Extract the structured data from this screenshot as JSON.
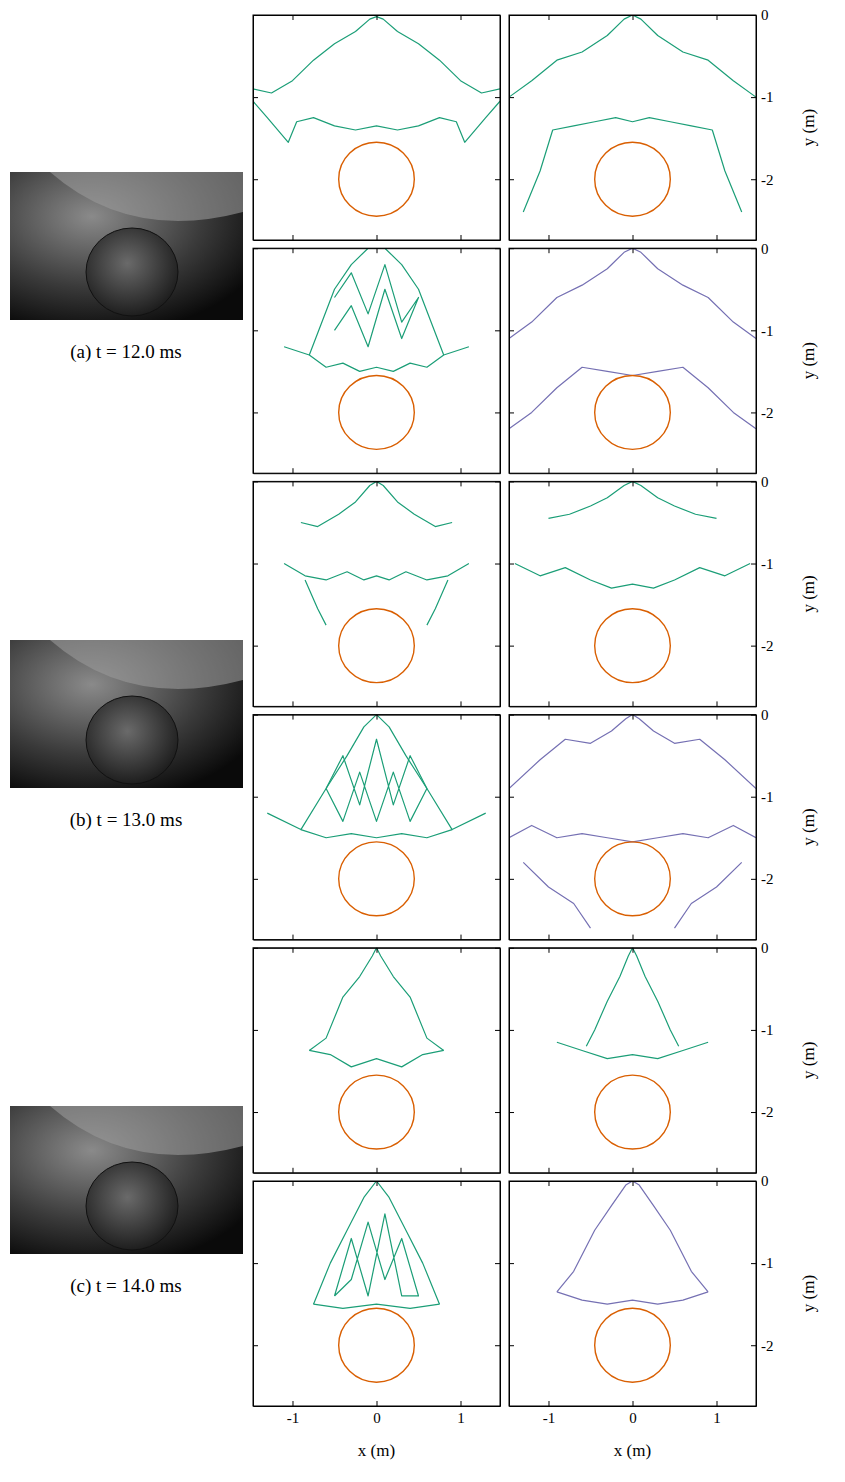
{
  "captions": [
    "(a) t = 12.0 ms",
    "(b) t = 13.0 ms",
    "(c) t = 14.0 ms"
  ],
  "chart_data": [
    {
      "type": "contour",
      "xlim": [
        -1.47,
        1.47
      ],
      "ylim": [
        -2.74,
        0
      ],
      "xticks": [
        -1,
        0,
        1
      ],
      "yticks": [
        0,
        -1,
        -2
      ],
      "tick_labels": false,
      "circle": {
        "cx": 0,
        "cy": -2,
        "r": 0.45,
        "color": "#d95f02"
      },
      "series": [
        {
          "color": "#1b9e77",
          "x": [
            -1.47,
            -1.25,
            -1.0,
            -0.75,
            -0.5,
            -0.25,
            -0.08,
            0,
            0.08,
            0.25,
            0.5,
            0.75,
            1.0,
            1.25,
            1.47
          ],
          "values": [
            -0.9,
            -0.95,
            -0.8,
            -0.55,
            -0.35,
            -0.2,
            -0.05,
            -0.02,
            -0.05,
            -0.2,
            -0.35,
            -0.55,
            -0.8,
            -0.95,
            -0.9
          ]
        },
        {
          "color": "#1b9e77",
          "x": [
            -1.47,
            -1.3,
            -1.05,
            -0.95,
            -0.75,
            -0.5,
            -0.25,
            0,
            0.25,
            0.5,
            0.75,
            0.95,
            1.05,
            1.3,
            1.47
          ],
          "values": [
            -1.05,
            -1.25,
            -1.55,
            -1.3,
            -1.25,
            -1.35,
            -1.4,
            -1.35,
            -1.4,
            -1.35,
            -1.25,
            -1.3,
            -1.55,
            -1.25,
            -1.05
          ]
        }
      ]
    },
    {
      "type": "contour",
      "xlim": [
        -1.47,
        1.47
      ],
      "ylim": [
        -2.74,
        0
      ],
      "xticks": [
        -1,
        0,
        1
      ],
      "yticks": [
        0,
        -1,
        -2
      ],
      "tick_labels": "y",
      "ylabel": "y (m)",
      "circle": {
        "cx": 0,
        "cy": -2,
        "r": 0.45,
        "color": "#d95f02"
      },
      "series": [
        {
          "color": "#1b9e77",
          "x": [
            -1.47,
            -1.2,
            -0.9,
            -0.6,
            -0.3,
            -0.1,
            0,
            0.1,
            0.3,
            0.6,
            0.9,
            1.2,
            1.47
          ],
          "values": [
            -1.0,
            -0.8,
            -0.55,
            -0.45,
            -0.25,
            -0.05,
            0,
            -0.05,
            -0.25,
            -0.45,
            -0.55,
            -0.8,
            -1.0
          ]
        },
        {
          "color": "#1b9e77",
          "x": [
            -1.3,
            -1.1,
            -0.95,
            -0.7,
            -0.45,
            -0.2,
            0,
            0.2,
            0.45,
            0.7,
            0.95,
            1.1,
            1.3
          ],
          "values": [
            -2.4,
            -1.9,
            -1.4,
            -1.35,
            -1.3,
            -1.25,
            -1.3,
            -1.25,
            -1.3,
            -1.35,
            -1.4,
            -1.9,
            -2.4
          ]
        }
      ]
    },
    {
      "type": "contour",
      "xlim": [
        -1.47,
        1.47
      ],
      "ylim": [
        -2.74,
        0
      ],
      "xticks": [
        -1,
        0,
        1
      ],
      "yticks": [
        0,
        -1,
        -2
      ],
      "tick_labels": false,
      "circle": {
        "cx": 0,
        "cy": -2,
        "r": 0.45,
        "color": "#d95f02"
      },
      "series": [
        {
          "color": "#1b9e77",
          "x": [
            -1.1,
            -0.8,
            -0.5,
            -0.3,
            -0.1,
            0,
            0.1,
            0.3,
            0.5,
            0.8,
            1.1
          ],
          "values": [
            -1.2,
            -1.3,
            -0.5,
            -0.2,
            0,
            0,
            0,
            -0.2,
            -0.5,
            -1.3,
            -1.2
          ]
        },
        {
          "color": "#1b9e77",
          "x": [
            -0.8,
            -0.6,
            -0.4,
            -0.2,
            0,
            0.2,
            0.4,
            0.6,
            0.8
          ],
          "values": [
            -1.3,
            -1.45,
            -1.4,
            -1.5,
            -1.45,
            -1.5,
            -1.4,
            -1.45,
            -1.3
          ]
        },
        {
          "color": "#1b9e77",
          "x": [
            -0.5,
            -0.3,
            -0.1,
            0.1,
            0.3,
            0.5,
            0.3,
            0.1,
            -0.1,
            -0.3,
            -0.5
          ],
          "values": [
            -0.6,
            -0.3,
            -0.8,
            -0.2,
            -0.9,
            -0.6,
            -1.1,
            -0.5,
            -1.2,
            -0.7,
            -1.0
          ]
        }
      ]
    },
    {
      "type": "contour",
      "xlim": [
        -1.47,
        1.47
      ],
      "ylim": [
        -2.74,
        0
      ],
      "xticks": [
        -1,
        0,
        1
      ],
      "yticks": [
        0,
        -1,
        -2
      ],
      "tick_labels": "y",
      "ylabel": "y (m)",
      "circle": {
        "cx": 0,
        "cy": -2,
        "r": 0.45,
        "color": "#d95f02"
      },
      "series": [
        {
          "color": "#7570b3",
          "x": [
            -1.47,
            -1.2,
            -0.9,
            -0.6,
            -0.3,
            -0.1,
            0,
            0.1,
            0.3,
            0.6,
            0.9,
            1.2,
            1.47
          ],
          "values": [
            -1.1,
            -0.9,
            -0.6,
            -0.45,
            -0.25,
            -0.05,
            0,
            -0.05,
            -0.25,
            -0.45,
            -0.6,
            -0.9,
            -1.1
          ]
        },
        {
          "color": "#7570b3",
          "x": [
            -1.47,
            -1.2,
            -0.9,
            -0.6,
            -0.3,
            0,
            0.3,
            0.6,
            0.9,
            1.2,
            1.47
          ],
          "values": [
            -2.2,
            -2.0,
            -1.7,
            -1.45,
            -1.5,
            -1.55,
            -1.5,
            -1.45,
            -1.7,
            -2.0,
            -2.2
          ]
        }
      ]
    },
    {
      "type": "contour",
      "xlim": [
        -1.47,
        1.47
      ],
      "ylim": [
        -2.74,
        0
      ],
      "xticks": [
        -1,
        0,
        1
      ],
      "yticks": [
        0,
        -1,
        -2
      ],
      "tick_labels": false,
      "circle": {
        "cx": 0,
        "cy": -2,
        "r": 0.45,
        "color": "#d95f02"
      },
      "series": [
        {
          "color": "#1b9e77",
          "x": [
            -0.9,
            -0.7,
            -0.45,
            -0.25,
            -0.08,
            0,
            0.08,
            0.25,
            0.45,
            0.7,
            0.9
          ],
          "values": [
            -0.5,
            -0.55,
            -0.4,
            -0.25,
            -0.05,
            0,
            -0.05,
            -0.25,
            -0.4,
            -0.55,
            -0.5
          ]
        },
        {
          "color": "#1b9e77",
          "x": [
            -1.1,
            -0.85,
            -0.6,
            -0.35,
            -0.15,
            0,
            0.15,
            0.35,
            0.6,
            0.85,
            1.1
          ],
          "values": [
            -1.0,
            -1.15,
            -1.2,
            -1.1,
            -1.2,
            -1.15,
            -1.2,
            -1.1,
            -1.2,
            -1.15,
            -1.0
          ]
        },
        {
          "color": "#1b9e77",
          "x": [
            -0.85,
            -0.7,
            -0.6
          ],
          "values": [
            -1.2,
            -1.55,
            -1.75
          ]
        },
        {
          "color": "#1b9e77",
          "x": [
            0.85,
            0.7,
            0.6
          ],
          "values": [
            -1.2,
            -1.55,
            -1.75
          ]
        }
      ]
    },
    {
      "type": "contour",
      "xlim": [
        -1.47,
        1.47
      ],
      "ylim": [
        -2.74,
        0
      ],
      "xticks": [
        -1,
        0,
        1
      ],
      "yticks": [
        0,
        -1,
        -2
      ],
      "tick_labels": "y",
      "ylabel": "y (m)",
      "circle": {
        "cx": 0,
        "cy": -2,
        "r": 0.45,
        "color": "#d95f02"
      },
      "series": [
        {
          "color": "#1b9e77",
          "x": [
            -1.0,
            -0.75,
            -0.5,
            -0.3,
            -0.1,
            0,
            0.1,
            0.3,
            0.5,
            0.75,
            1.0
          ],
          "values": [
            -0.45,
            -0.4,
            -0.3,
            -0.2,
            -0.05,
            0,
            -0.05,
            -0.2,
            -0.3,
            -0.4,
            -0.45
          ]
        },
        {
          "color": "#1b9e77",
          "x": [
            -1.4,
            -1.1,
            -0.8,
            -0.5,
            -0.25,
            0,
            0.25,
            0.5,
            0.8,
            1.1,
            1.4
          ],
          "values": [
            -1.0,
            -1.15,
            -1.05,
            -1.2,
            -1.3,
            -1.25,
            -1.3,
            -1.2,
            -1.05,
            -1.15,
            -1.0
          ]
        }
      ]
    },
    {
      "type": "contour",
      "xlim": [
        -1.47,
        1.47
      ],
      "ylim": [
        -2.74,
        0
      ],
      "xticks": [
        -1,
        0,
        1
      ],
      "yticks": [
        0,
        -1,
        -2
      ],
      "tick_labels": false,
      "circle": {
        "cx": 0,
        "cy": -2,
        "r": 0.45,
        "color": "#d95f02"
      },
      "series": [
        {
          "color": "#1b9e77",
          "x": [
            -1.3,
            -0.9,
            -0.6,
            -0.35,
            -0.15,
            0,
            0.15,
            0.35,
            0.6,
            0.9,
            1.3
          ],
          "values": [
            -1.2,
            -1.4,
            -0.9,
            -0.5,
            -0.15,
            0,
            -0.15,
            -0.5,
            -0.9,
            -1.4,
            -1.2
          ]
        },
        {
          "color": "#1b9e77",
          "x": [
            -0.9,
            -0.6,
            -0.3,
            0,
            0.3,
            0.6,
            0.9
          ],
          "values": [
            -1.4,
            -1.5,
            -1.45,
            -1.5,
            -1.45,
            -1.5,
            -1.4
          ]
        },
        {
          "color": "#1b9e77",
          "x": [
            -0.6,
            -0.4,
            -0.2,
            0,
            0.2,
            0.4,
            0.6,
            0.4,
            0.2,
            0,
            -0.2,
            -0.4,
            -0.6
          ],
          "values": [
            -0.9,
            -0.5,
            -1.1,
            -0.3,
            -1.1,
            -0.5,
            -0.9,
            -1.3,
            -0.7,
            -1.3,
            -0.7,
            -1.3,
            -0.9
          ]
        }
      ]
    },
    {
      "type": "contour",
      "xlim": [
        -1.47,
        1.47
      ],
      "ylim": [
        -2.74,
        0
      ],
      "xticks": [
        -1,
        0,
        1
      ],
      "yticks": [
        0,
        -1,
        -2
      ],
      "tick_labels": "y",
      "ylabel": "y (m)",
      "circle": {
        "cx": 0,
        "cy": -2,
        "r": 0.45,
        "color": "#d95f02"
      },
      "series": [
        {
          "color": "#7570b3",
          "x": [
            -1.47,
            -1.1,
            -0.8,
            -0.5,
            -0.25,
            -0.08,
            0,
            0.08,
            0.25,
            0.5,
            0.8,
            1.1,
            1.47
          ],
          "values": [
            -0.9,
            -0.55,
            -0.3,
            -0.35,
            -0.2,
            -0.05,
            0,
            -0.05,
            -0.2,
            -0.35,
            -0.3,
            -0.55,
            -0.9
          ]
        },
        {
          "color": "#7570b3",
          "x": [
            -1.47,
            -1.2,
            -0.9,
            -0.6,
            -0.3,
            0,
            0.3,
            0.6,
            0.9,
            1.2,
            1.47
          ],
          "values": [
            -1.5,
            -1.35,
            -1.5,
            -1.45,
            -1.5,
            -1.55,
            -1.5,
            -1.45,
            -1.5,
            -1.35,
            -1.5
          ]
        },
        {
          "color": "#7570b3",
          "x": [
            -1.3,
            -1.0,
            -0.7,
            -0.5
          ],
          "values": [
            -1.8,
            -2.1,
            -2.3,
            -2.6
          ]
        },
        {
          "color": "#7570b3",
          "x": [
            1.3,
            1.0,
            0.7,
            0.5
          ],
          "values": [
            -1.8,
            -2.1,
            -2.3,
            -2.6
          ]
        }
      ]
    },
    {
      "type": "contour",
      "xlim": [
        -1.47,
        1.47
      ],
      "ylim": [
        -2.74,
        0
      ],
      "xticks": [
        -1,
        0,
        1
      ],
      "yticks": [
        0,
        -1,
        -2
      ],
      "tick_labels": false,
      "circle": {
        "cx": 0,
        "cy": -2,
        "r": 0.45,
        "color": "#d95f02"
      },
      "series": [
        {
          "color": "#1b9e77",
          "x": [
            -0.8,
            -0.6,
            -0.4,
            -0.2,
            -0.05,
            0,
            0.05,
            0.2,
            0.4,
            0.6,
            0.8
          ],
          "values": [
            -1.25,
            -1.1,
            -0.6,
            -0.35,
            -0.1,
            0,
            -0.1,
            -0.35,
            -0.6,
            -1.1,
            -1.25
          ]
        },
        {
          "color": "#1b9e77",
          "x": [
            -0.8,
            -0.55,
            -0.3,
            0,
            0.3,
            0.55,
            0.8
          ],
          "values": [
            -1.25,
            -1.3,
            -1.45,
            -1.35,
            -1.45,
            -1.3,
            -1.25
          ]
        }
      ]
    },
    {
      "type": "contour",
      "xlim": [
        -1.47,
        1.47
      ],
      "ylim": [
        -2.74,
        0
      ],
      "xticks": [
        -1,
        0,
        1
      ],
      "yticks": [
        0,
        -1,
        -2
      ],
      "tick_labels": "y",
      "ylabel": "y (m)",
      "circle": {
        "cx": 0,
        "cy": -2,
        "r": 0.45,
        "color": "#d95f02"
      },
      "series": [
        {
          "color": "#1b9e77",
          "x": [
            -0.55,
            -0.45,
            -0.3,
            -0.15,
            -0.05,
            0,
            0.05,
            0.15,
            0.3,
            0.45,
            0.55
          ],
          "values": [
            -1.2,
            -1.0,
            -0.65,
            -0.35,
            -0.1,
            0,
            -0.1,
            -0.35,
            -0.65,
            -1.0,
            -1.2
          ]
        },
        {
          "color": "#1b9e77",
          "x": [
            -0.9,
            -0.6,
            -0.3,
            0,
            0.3,
            0.6,
            0.9
          ],
          "values": [
            -1.15,
            -1.25,
            -1.35,
            -1.3,
            -1.35,
            -1.25,
            -1.15
          ]
        }
      ]
    },
    {
      "type": "contour",
      "xlim": [
        -1.47,
        1.47
      ],
      "ylim": [
        -2.74,
        0
      ],
      "xticks": [
        -1,
        0,
        1
      ],
      "yticks": [
        0,
        -1,
        -2
      ],
      "tick_labels": "x",
      "xlabel": "x (m)",
      "circle": {
        "cx": 0,
        "cy": -2,
        "r": 0.45,
        "color": "#d95f02"
      },
      "series": [
        {
          "color": "#1b9e77",
          "x": [
            -0.75,
            -0.55,
            -0.35,
            -0.15,
            0,
            0.15,
            0.35,
            0.55,
            0.75
          ],
          "values": [
            -1.5,
            -1.0,
            -0.6,
            -0.2,
            0,
            -0.2,
            -0.6,
            -1.0,
            -1.5
          ]
        },
        {
          "color": "#1b9e77",
          "x": [
            -0.75,
            -0.4,
            0,
            0.4,
            0.75
          ],
          "values": [
            -1.5,
            -1.55,
            -1.5,
            -1.55,
            -1.5
          ]
        },
        {
          "color": "#1b9e77",
          "x": [
            -0.5,
            -0.3,
            -0.1,
            0.1,
            0.3,
            0.5,
            0.3,
            0.1,
            -0.1,
            -0.3,
            -0.5
          ],
          "values": [
            -1.4,
            -0.7,
            -1.4,
            -0.4,
            -1.4,
            -1.4,
            -0.7,
            -1.2,
            -0.5,
            -1.2,
            -1.4
          ]
        }
      ]
    },
    {
      "type": "contour",
      "xlim": [
        -1.47,
        1.47
      ],
      "ylim": [
        -2.74,
        0
      ],
      "xticks": [
        -1,
        0,
        1
      ],
      "yticks": [
        0,
        -1,
        -2
      ],
      "xlabel": "x (m)",
      "ylabel": "y (m)",
      "circle": {
        "cx": 0,
        "cy": -2,
        "r": 0.45,
        "color": "#d95f02"
      },
      "series": [
        {
          "color": "#7570b3",
          "x": [
            -0.9,
            -0.7,
            -0.45,
            -0.25,
            -0.08,
            0,
            0.08,
            0.25,
            0.45,
            0.7,
            0.9
          ],
          "values": [
            -1.35,
            -1.1,
            -0.6,
            -0.3,
            -0.05,
            0,
            -0.05,
            -0.3,
            -0.6,
            -1.1,
            -1.35
          ]
        },
        {
          "color": "#7570b3",
          "x": [
            -0.9,
            -0.6,
            -0.3,
            0,
            0.3,
            0.6,
            0.9
          ],
          "values": [
            -1.35,
            -1.45,
            -1.5,
            -1.45,
            -1.5,
            -1.45,
            -1.35
          ]
        }
      ]
    }
  ]
}
